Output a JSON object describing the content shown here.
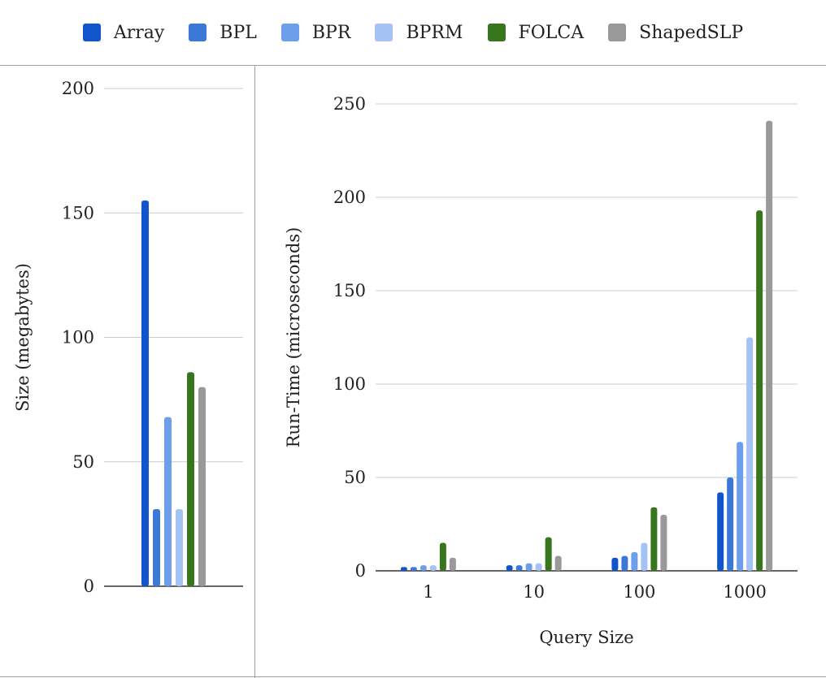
{
  "legend": [
    {
      "name": "Array",
      "color": "#1155cc"
    },
    {
      "name": "BPL",
      "color": "#3c78d8"
    },
    {
      "name": "BPR",
      "color": "#6d9eeb"
    },
    {
      "name": "BPRM",
      "color": "#a4c2f4"
    },
    {
      "name": "FOLCA",
      "color": "#38761d"
    },
    {
      "name": "ShapedSLP",
      "color": "#999999"
    }
  ],
  "chart_data": [
    {
      "type": "bar",
      "title": "",
      "xlabel": "",
      "ylabel": "Size (megabytes)",
      "ylim": [
        0,
        200
      ],
      "yticks": [
        "0",
        "50",
        "100",
        "150",
        "200"
      ],
      "categories": [
        ""
      ],
      "series": [
        {
          "name": "Array",
          "values": [
            155
          ]
        },
        {
          "name": "BPL",
          "values": [
            31
          ]
        },
        {
          "name": "BPR",
          "values": [
            68
          ]
        },
        {
          "name": "BPRM",
          "values": [
            31
          ]
        },
        {
          "name": "FOLCA",
          "values": [
            86
          ]
        },
        {
          "name": "ShapedSLP",
          "values": [
            80
          ]
        }
      ]
    },
    {
      "type": "bar",
      "title": "",
      "xlabel": "Query Size",
      "ylabel": "Run-Time (microseconds)",
      "ylim": [
        0,
        250
      ],
      "yticks": [
        "0",
        "50",
        "100",
        "150",
        "200",
        "250"
      ],
      "categories": [
        "1",
        "10",
        "100",
        "1000"
      ],
      "series": [
        {
          "name": "Array",
          "values": [
            2,
            3,
            7,
            42
          ]
        },
        {
          "name": "BPL",
          "values": [
            2,
            3,
            8,
            50
          ]
        },
        {
          "name": "BPR",
          "values": [
            3,
            4,
            10,
            69
          ]
        },
        {
          "name": "BPRM",
          "values": [
            3,
            4,
            15,
            125
          ]
        },
        {
          "name": "FOLCA",
          "values": [
            15,
            18,
            34,
            193
          ]
        },
        {
          "name": "ShapedSLP",
          "values": [
            7,
            8,
            30,
            241
          ]
        }
      ]
    }
  ]
}
